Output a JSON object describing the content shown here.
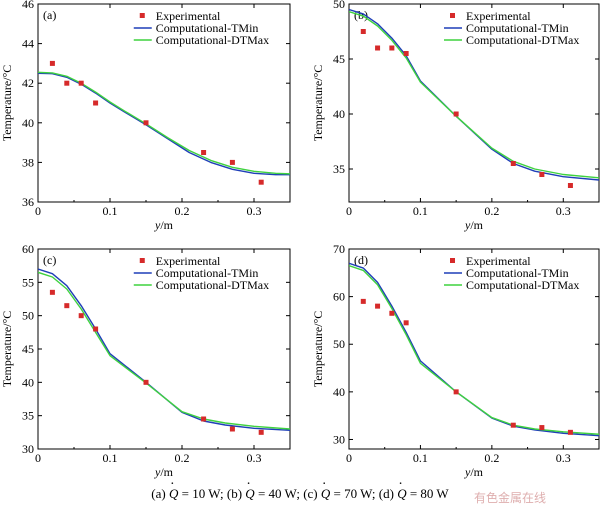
{
  "colors": {
    "experimental": "#d62a2a",
    "tmin": "#1f3fb8",
    "dtmax": "#3fd23f",
    "axis": "#000000"
  },
  "caption": {
    "a": "(a)",
    "a_val": "= 10  W; ",
    "b": "(b)",
    "b_val": "= 40 W; ",
    "c": "(c)",
    "c_val": "= 70 W; ",
    "d": "(d)",
    "d_val": "= 80 W",
    "q_symbol": "Q"
  },
  "watermark": "有色金属在线",
  "chart_data": [
    {
      "type": "line",
      "panel_label": "(a)",
      "xlabel_var": "y",
      "xlabel_unit": "/m",
      "ylabel": "Temperature/°C",
      "xlim": [
        0,
        0.35
      ],
      "ylim": [
        36,
        46
      ],
      "xticks": [
        "0",
        "0.1",
        "0.2",
        "0.3"
      ],
      "yticks": [
        "36",
        "38",
        "40",
        "42",
        "44",
        "46"
      ],
      "ytick_values": [
        36,
        38,
        40,
        42,
        44,
        46
      ],
      "legend": [
        "Experimental",
        "Computational-TMin",
        "Computational-DTMax"
      ],
      "legend_position": "top-right",
      "series": [
        {
          "name": "Experimental",
          "kind": "scatter",
          "x": [
            0.02,
            0.04,
            0.06,
            0.08,
            0.15,
            0.23,
            0.27,
            0.31
          ],
          "y": [
            43.0,
            42.0,
            42.0,
            41.0,
            40.0,
            38.5,
            38.0,
            37.0
          ]
        },
        {
          "name": "Computational-TMin",
          "kind": "line",
          "x": [
            0,
            0.02,
            0.04,
            0.06,
            0.08,
            0.1,
            0.12,
            0.15,
            0.18,
            0.21,
            0.24,
            0.27,
            0.3,
            0.33,
            0.35
          ],
          "y": [
            42.5,
            42.48,
            42.3,
            41.95,
            41.5,
            41.0,
            40.55,
            39.9,
            39.2,
            38.5,
            38.0,
            37.65,
            37.45,
            37.38,
            37.38
          ]
        },
        {
          "name": "Computational-DTMax",
          "kind": "line",
          "x": [
            0,
            0.02,
            0.04,
            0.06,
            0.08,
            0.1,
            0.12,
            0.15,
            0.18,
            0.21,
            0.24,
            0.27,
            0.3,
            0.33,
            0.35
          ],
          "y": [
            42.55,
            42.52,
            42.35,
            42.0,
            41.55,
            41.05,
            40.6,
            39.95,
            39.25,
            38.6,
            38.1,
            37.75,
            37.55,
            37.45,
            37.42
          ]
        }
      ]
    },
    {
      "type": "line",
      "panel_label": "(b)",
      "xlabel_var": "y",
      "xlabel_unit": "/m",
      "ylabel": "Temperature/°C",
      "xlim": [
        0,
        0.35
      ],
      "ylim": [
        32,
        50
      ],
      "xticks": [
        "0",
        "0.1",
        "0.2",
        "0.3"
      ],
      "yticks": [
        "35",
        "40",
        "45",
        "50"
      ],
      "ytick_values": [
        35,
        40,
        45,
        50
      ],
      "legend": [
        "Experimental",
        "Computational-TMin",
        "Computational-DTMax"
      ],
      "legend_position": "top-right",
      "series": [
        {
          "name": "Experimental",
          "kind": "scatter",
          "x": [
            0.02,
            0.04,
            0.06,
            0.08,
            0.15,
            0.23,
            0.27,
            0.31
          ],
          "y": [
            47.5,
            46.0,
            46.0,
            45.5,
            40.0,
            35.5,
            34.5,
            33.5
          ]
        },
        {
          "name": "Computational-TMin",
          "kind": "line",
          "x": [
            0,
            0.02,
            0.04,
            0.06,
            0.08,
            0.1,
            0.15,
            0.2,
            0.23,
            0.26,
            0.3,
            0.35
          ],
          "y": [
            49.5,
            49.1,
            48.2,
            46.9,
            45.3,
            43.0,
            39.8,
            36.8,
            35.5,
            34.8,
            34.3,
            34.0
          ]
        },
        {
          "name": "Computational-DTMax",
          "kind": "line",
          "x": [
            0,
            0.02,
            0.04,
            0.06,
            0.08,
            0.1,
            0.15,
            0.2,
            0.23,
            0.26,
            0.3,
            0.35
          ],
          "y": [
            49.3,
            48.9,
            48.0,
            46.7,
            45.1,
            42.9,
            39.8,
            36.9,
            35.7,
            35.0,
            34.5,
            34.2
          ]
        }
      ]
    },
    {
      "type": "line",
      "panel_label": "(c)",
      "xlabel_var": "y",
      "xlabel_unit": "/m",
      "ylabel": "Temperature/°C",
      "xlim": [
        0,
        0.35
      ],
      "ylim": [
        30,
        60
      ],
      "xticks": [
        "0",
        "0.1",
        "0.2",
        "0.3"
      ],
      "yticks": [
        "30",
        "35",
        "40",
        "45",
        "50",
        "55",
        "60"
      ],
      "ytick_values": [
        30,
        35,
        40,
        45,
        50,
        55,
        60
      ],
      "legend": [
        "Experimental",
        "Computational-TMin",
        "Computational-DTMax"
      ],
      "legend_position": "top-right",
      "series": [
        {
          "name": "Experimental",
          "kind": "scatter",
          "x": [
            0.02,
            0.04,
            0.06,
            0.08,
            0.15,
            0.23,
            0.27,
            0.31
          ],
          "y": [
            53.5,
            51.5,
            50.0,
            48.0,
            40.0,
            34.5,
            33.0,
            32.5
          ]
        },
        {
          "name": "Computational-TMin",
          "kind": "line",
          "x": [
            0,
            0.02,
            0.04,
            0.06,
            0.08,
            0.1,
            0.15,
            0.2,
            0.23,
            0.26,
            0.3,
            0.35
          ],
          "y": [
            57.0,
            56.3,
            54.5,
            51.5,
            48.0,
            44.3,
            40.0,
            35.5,
            34.2,
            33.6,
            33.1,
            32.8
          ]
        },
        {
          "name": "Computational-DTMax",
          "kind": "line",
          "x": [
            0,
            0.02,
            0.04,
            0.06,
            0.08,
            0.1,
            0.15,
            0.2,
            0.23,
            0.26,
            0.3,
            0.35
          ],
          "y": [
            56.5,
            55.8,
            54.0,
            51.0,
            47.5,
            44.0,
            39.9,
            35.6,
            34.5,
            33.9,
            33.4,
            33.0
          ]
        }
      ]
    },
    {
      "type": "line",
      "panel_label": "(d)",
      "xlabel_var": "y",
      "xlabel_unit": "/m",
      "ylabel": "Temperature/°C",
      "xlim": [
        0,
        0.35
      ],
      "ylim": [
        28,
        70
      ],
      "xticks": [
        "0",
        "0.1",
        "0.2",
        "0.3"
      ],
      "yticks": [
        "30",
        "40",
        "50",
        "60",
        "70"
      ],
      "ytick_values": [
        30,
        40,
        50,
        60,
        70
      ],
      "legend": [
        "Experimental",
        "Computational-TMin",
        "Computational-DTMax"
      ],
      "legend_position": "top-right",
      "series": [
        {
          "name": "Experimental",
          "kind": "scatter",
          "x": [
            0.02,
            0.04,
            0.06,
            0.08,
            0.15,
            0.23,
            0.27,
            0.31
          ],
          "y": [
            59.0,
            58.0,
            56.5,
            54.5,
            40.0,
            33.0,
            32.5,
            31.5
          ]
        },
        {
          "name": "Computational-TMin",
          "kind": "line",
          "x": [
            0,
            0.02,
            0.04,
            0.06,
            0.08,
            0.1,
            0.15,
            0.2,
            0.23,
            0.26,
            0.3,
            0.35
          ],
          "y": [
            67.0,
            66.0,
            63.0,
            58.0,
            52.5,
            46.5,
            40.0,
            34.5,
            32.8,
            32.0,
            31.3,
            30.8
          ]
        },
        {
          "name": "Computational-DTMax",
          "kind": "line",
          "x": [
            0,
            0.02,
            0.04,
            0.06,
            0.08,
            0.1,
            0.15,
            0.2,
            0.23,
            0.26,
            0.3,
            0.35
          ],
          "y": [
            66.5,
            65.5,
            62.5,
            57.5,
            52.0,
            46.0,
            40.0,
            34.6,
            33.0,
            32.2,
            31.6,
            31.1
          ]
        }
      ]
    }
  ]
}
